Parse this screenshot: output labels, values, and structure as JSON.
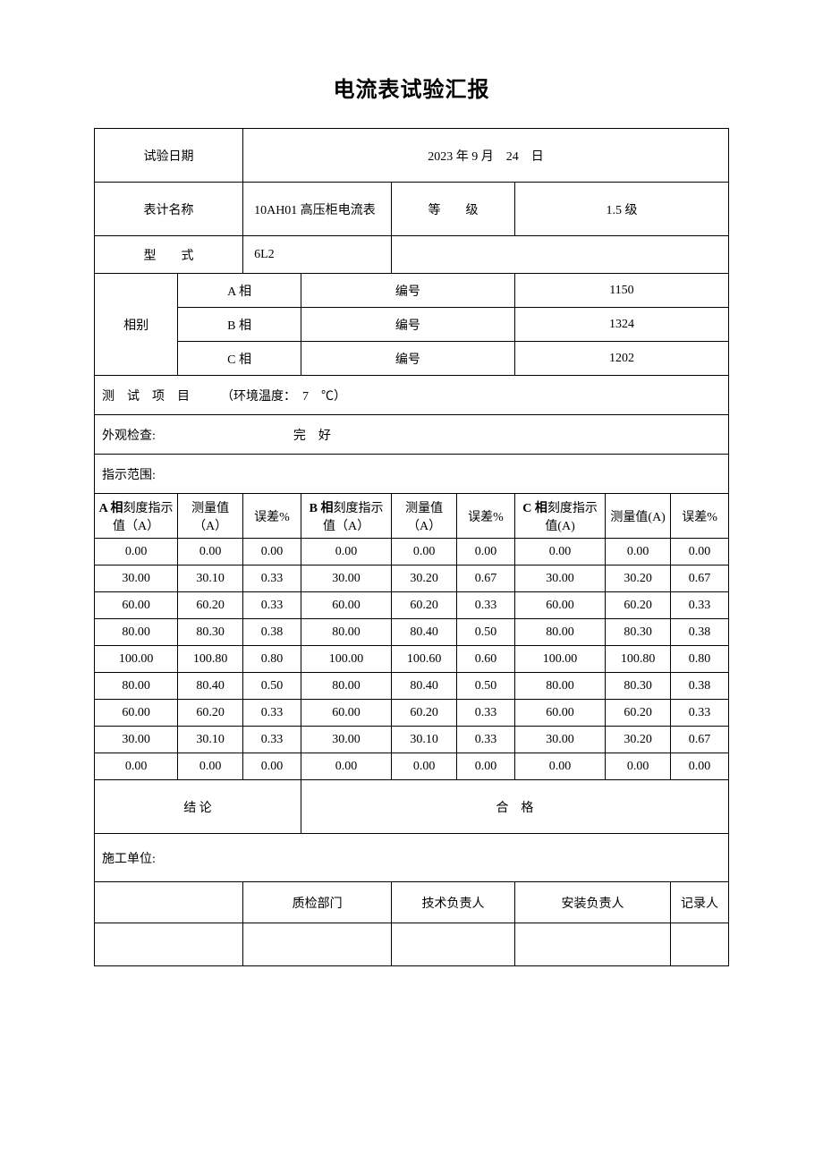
{
  "title": "电流表试验汇报",
  "rows": {
    "test_date_label": "试验日期",
    "test_date_value": "2023 年 9 月　24　日",
    "meter_name_label": "表计名称",
    "meter_name_value": "10AH01 高压柜电流表",
    "grade_label": "等　　级",
    "grade_value": "1.5 级",
    "model_label": "型　　式",
    "model_value": "6L2",
    "phase_label": "相别",
    "phase_a": "A 相",
    "phase_b": "B 相",
    "phase_c": "C 相",
    "number_label": "编号",
    "num_a": "1150",
    "num_b": "1324",
    "num_c": "1202",
    "test_items": "测　试　项　目　　　（环境温度：　7　℃）",
    "appearance": "外观检查:　　　　　　　　　　　完　好",
    "range_label": "指示范围:"
  },
  "headers": {
    "a_scale": "A 相刻度指示值（A）",
    "a_scale_b": "A 相",
    "b_scale": "B 相刻度指示值（A）",
    "b_scale_b": "B 相",
    "c_scale": "C 相刻度指示值(A)",
    "c_scale_b": "C 相",
    "measure": "测量值（A）",
    "measure2": "测量值(A)",
    "error": "误差%"
  },
  "data": [
    [
      "0.00",
      "0.00",
      "0.00",
      "0.00",
      "0.00",
      "0.00",
      "0.00",
      "0.00",
      "0.00"
    ],
    [
      "30.00",
      "30.10",
      "0.33",
      "30.00",
      "30.20",
      "0.67",
      "30.00",
      "30.20",
      "0.67"
    ],
    [
      "60.00",
      "60.20",
      "0.33",
      "60.00",
      "60.20",
      "0.33",
      "60.00",
      "60.20",
      "0.33"
    ],
    [
      "80.00",
      "80.30",
      "0.38",
      "80.00",
      "80.40",
      "0.50",
      "80.00",
      "80.30",
      "0.38"
    ],
    [
      "100.00",
      "100.80",
      "0.80",
      "100.00",
      "100.60",
      "0.60",
      "100.00",
      "100.80",
      "0.80"
    ],
    [
      "80.00",
      "80.40",
      "0.50",
      "80.00",
      "80.40",
      "0.50",
      "80.00",
      "80.30",
      "0.38"
    ],
    [
      "60.00",
      "60.20",
      "0.33",
      "60.00",
      "60.20",
      "0.33",
      "60.00",
      "60.20",
      "0.33"
    ],
    [
      "30.00",
      "30.10",
      "0.33",
      "30.00",
      "30.10",
      "0.33",
      "30.00",
      "30.20",
      "0.67"
    ],
    [
      "0.00",
      "0.00",
      "0.00",
      "0.00",
      "0.00",
      "0.00",
      "0.00",
      "0.00",
      "0.00"
    ]
  ],
  "conclusion_label": "结 论",
  "conclusion_value": "合　格",
  "construction_unit": "施工单位:",
  "sign": {
    "qc": "质检部门",
    "tech": "技术负责人",
    "install": "安装负责人",
    "recorder": "记录人"
  }
}
